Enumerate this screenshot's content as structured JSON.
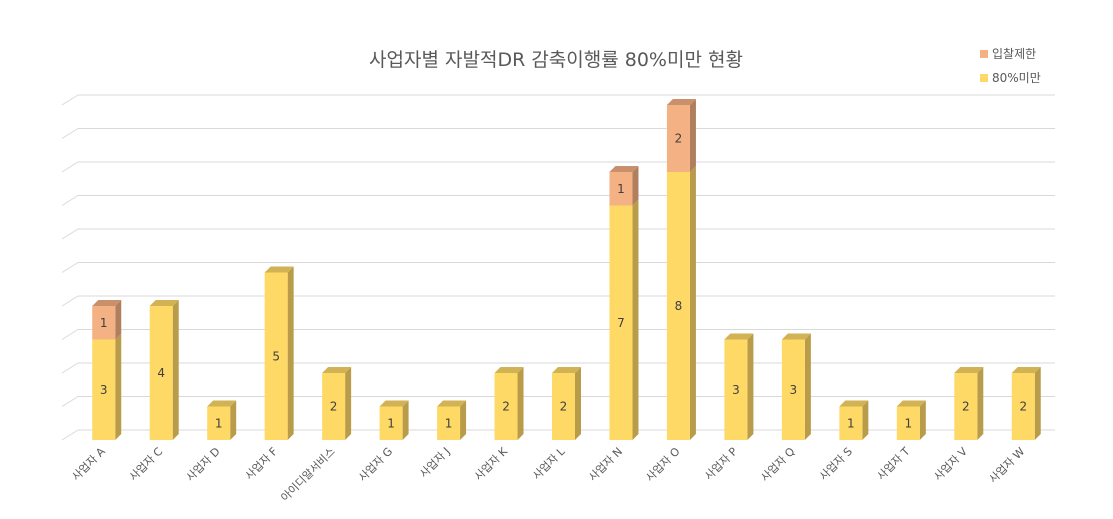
{
  "chart_data": {
    "type": "bar",
    "stacked": true,
    "title": "사업자별 자발적DR 감축이행률 80%미만 현황",
    "categories": [
      "사업자 A",
      "사업자 C",
      "사업자 D",
      "사업자 F",
      "아이디알서비스",
      "사업자 G",
      "사업자 J",
      "사업자 K",
      "사업자 L",
      "사업자 N",
      "사업자 O",
      "사업자 P",
      "사업자 Q",
      "사업자 S",
      "사업자 T",
      "사업자 V",
      "사업자 W"
    ],
    "series": [
      {
        "name": "80%미만",
        "color": "#FFD966",
        "values": [
          3,
          4,
          1,
          5,
          2,
          1,
          1,
          2,
          2,
          7,
          8,
          3,
          3,
          1,
          1,
          2,
          2
        ]
      },
      {
        "name": "입찰제한",
        "color": "#F4B183",
        "values": [
          1,
          0,
          0,
          0,
          0,
          0,
          0,
          0,
          0,
          1,
          2,
          0,
          0,
          0,
          0,
          0,
          0
        ]
      }
    ],
    "legend": {
      "position": "top-right",
      "entries": [
        "입찰제한",
        "80%미만"
      ]
    },
    "ylim": [
      0,
      10
    ],
    "grid": true,
    "bar_style": "3d"
  }
}
